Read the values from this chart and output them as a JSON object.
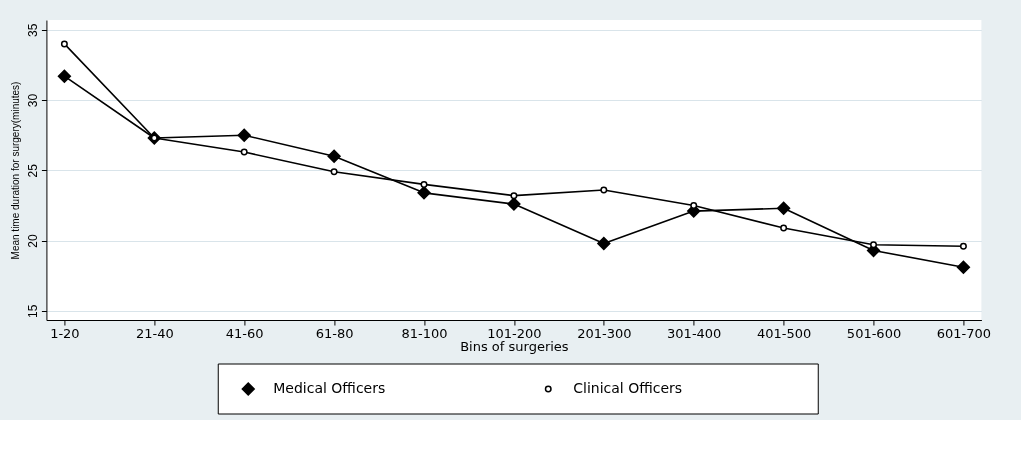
{
  "chart_data": {
    "type": "line",
    "xlabel": "Bins of surgeries",
    "ylabel": "Mean time duration for surgery(minutes)",
    "categories": [
      "1-20",
      "21-40",
      "41-60",
      "61-80",
      "81-100",
      "101-200",
      "201-300",
      "301-400",
      "401-500",
      "501-600",
      "601-700"
    ],
    "series": [
      {
        "name": "Medical Officers",
        "color": "#000000",
        "marker": "diamond",
        "values": [
          31.7,
          27.3,
          27.5,
          26.0,
          23.4,
          22.6,
          19.8,
          22.1,
          22.3,
          19.3,
          18.1
        ]
      },
      {
        "name": "Clinical Officers",
        "color": "#000000",
        "marker": "circle",
        "values": [
          34.0,
          27.3,
          26.3,
          24.9,
          24.0,
          23.2,
          23.6,
          22.5,
          20.9,
          19.7,
          19.6
        ]
      }
    ],
    "ylim": [
      14.35,
      35.7
    ],
    "yticks": [
      15,
      20,
      25,
      30,
      35
    ],
    "grid": "y",
    "legend": "bottom"
  }
}
